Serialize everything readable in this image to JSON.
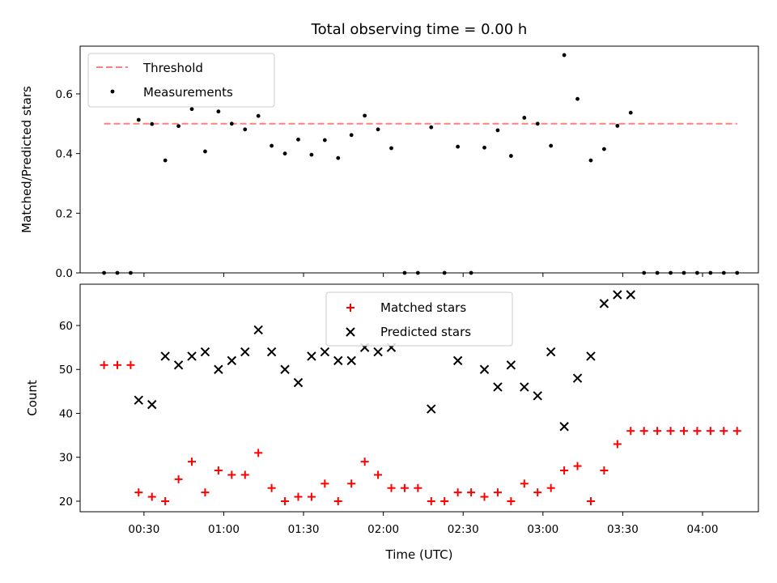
{
  "title": "Total observing time = 0.00 h",
  "colors": {
    "threshold": "#ff7f7f",
    "measurements": "#000000",
    "matched": "#ff0000",
    "predicted": "#000000"
  },
  "chart_data": [
    {
      "type": "scatter",
      "panel": "top",
      "ylabel": "Matched/Predicted stars",
      "xlabel": "",
      "ylim": [
        0.0,
        0.76
      ],
      "yticks": [
        0.0,
        0.2,
        0.4,
        0.6
      ],
      "ytick_labels": [
        "0.0",
        "0.2",
        "0.4",
        "0.6"
      ],
      "legend_position": "upper-left",
      "threshold": {
        "name": "Threshold",
        "value": 0.5,
        "x_start": "00:15",
        "x_end": "04:13"
      },
      "series": [
        {
          "name": "Measurements",
          "marker": "dot",
          "points": [
            [
              "00:15",
              0.0
            ],
            [
              "00:20",
              0.0
            ],
            [
              "00:25",
              0.0
            ],
            [
              "00:28",
              0.513
            ],
            [
              "00:33",
              0.499
            ],
            [
              "00:38",
              0.377
            ],
            [
              "00:43",
              0.492
            ],
            [
              "00:48",
              0.549
            ],
            [
              "00:53",
              0.407
            ],
            [
              "00:58",
              0.541
            ],
            [
              "01:03",
              0.5
            ],
            [
              "01:08",
              0.481
            ],
            [
              "01:13",
              0.526
            ],
            [
              "01:18",
              0.426
            ],
            [
              "01:23",
              0.4
            ],
            [
              "01:28",
              0.447
            ],
            [
              "01:33",
              0.396
            ],
            [
              "01:38",
              0.445
            ],
            [
              "01:43",
              0.385
            ],
            [
              "01:48",
              0.462
            ],
            [
              "01:53",
              0.527
            ],
            [
              "01:58",
              0.481
            ],
            [
              "02:03",
              0.418
            ],
            [
              "02:08",
              0.0
            ],
            [
              "02:13",
              0.0
            ],
            [
              "02:18",
              0.488
            ],
            [
              "02:23",
              0.0
            ],
            [
              "02:28",
              0.423
            ],
            [
              "02:33",
              0.0
            ],
            [
              "02:38",
              0.42
            ],
            [
              "02:43",
              0.478
            ],
            [
              "02:48",
              0.392
            ],
            [
              "02:53",
              0.52
            ],
            [
              "02:58",
              0.5
            ],
            [
              "03:03",
              0.426
            ],
            [
              "03:08",
              0.73
            ],
            [
              "03:13",
              0.583
            ],
            [
              "03:18",
              0.377
            ],
            [
              "03:23",
              0.415
            ],
            [
              "03:28",
              0.493
            ],
            [
              "03:33",
              0.537
            ],
            [
              "03:38",
              0.0
            ],
            [
              "03:43",
              0.0
            ],
            [
              "03:48",
              0.0
            ],
            [
              "03:53",
              0.0
            ],
            [
              "03:58",
              0.0
            ],
            [
              "04:03",
              0.0
            ],
            [
              "04:08",
              0.0
            ],
            [
              "04:13",
              0.0
            ]
          ]
        }
      ]
    },
    {
      "type": "scatter",
      "panel": "bottom",
      "ylabel": "Count",
      "xlabel": "Time (UTC)",
      "ylim": [
        17.6,
        69.4
      ],
      "yticks": [
        20,
        30,
        40,
        50,
        60
      ],
      "ytick_labels": [
        "20",
        "30",
        "40",
        "50",
        "60"
      ],
      "xlim": [
        "00:06",
        "04:21"
      ],
      "xticks": [
        "00:30",
        "01:00",
        "01:30",
        "02:00",
        "02:30",
        "03:00",
        "03:30",
        "04:00"
      ],
      "xtick_labels": [
        "00:30",
        "01:00",
        "01:30",
        "02:00",
        "02:30",
        "03:00",
        "03:30",
        "04:00"
      ],
      "legend_position": "upper-center",
      "series": [
        {
          "name": "Matched stars",
          "marker": "plus",
          "points": [
            [
              "00:15",
              51
            ],
            [
              "00:20",
              51
            ],
            [
              "00:25",
              51
            ],
            [
              "00:28",
              22
            ],
            [
              "00:33",
              21
            ],
            [
              "00:38",
              20
            ],
            [
              "00:43",
              25
            ],
            [
              "00:48",
              29
            ],
            [
              "00:53",
              22
            ],
            [
              "00:58",
              27
            ],
            [
              "01:03",
              26
            ],
            [
              "01:08",
              26
            ],
            [
              "01:13",
              31
            ],
            [
              "01:18",
              23
            ],
            [
              "01:23",
              20
            ],
            [
              "01:28",
              21
            ],
            [
              "01:33",
              21
            ],
            [
              "01:38",
              24
            ],
            [
              "01:43",
              20
            ],
            [
              "01:48",
              24
            ],
            [
              "01:53",
              29
            ],
            [
              "01:58",
              26
            ],
            [
              "02:03",
              23
            ],
            [
              "02:08",
              23
            ],
            [
              "02:13",
              23
            ],
            [
              "02:18",
              20
            ],
            [
              "02:23",
              20
            ],
            [
              "02:28",
              22
            ],
            [
              "02:33",
              22
            ],
            [
              "02:38",
              21
            ],
            [
              "02:43",
              22
            ],
            [
              "02:48",
              20
            ],
            [
              "02:53",
              24
            ],
            [
              "02:58",
              22
            ],
            [
              "03:03",
              23
            ],
            [
              "03:08",
              27
            ],
            [
              "03:13",
              28
            ],
            [
              "03:18",
              20
            ],
            [
              "03:23",
              27
            ],
            [
              "03:28",
              33
            ],
            [
              "03:33",
              36
            ],
            [
              "03:38",
              36
            ],
            [
              "03:43",
              36
            ],
            [
              "03:48",
              36
            ],
            [
              "03:53",
              36
            ],
            [
              "03:58",
              36
            ],
            [
              "04:03",
              36
            ],
            [
              "04:08",
              36
            ],
            [
              "04:13",
              36
            ]
          ]
        },
        {
          "name": "Predicted stars",
          "marker": "x",
          "points": [
            [
              "00:28",
              43
            ],
            [
              "00:33",
              42
            ],
            [
              "00:38",
              53
            ],
            [
              "00:43",
              51
            ],
            [
              "00:48",
              53
            ],
            [
              "00:53",
              54
            ],
            [
              "00:58",
              50
            ],
            [
              "01:03",
              52
            ],
            [
              "01:08",
              54
            ],
            [
              "01:13",
              59
            ],
            [
              "01:18",
              54
            ],
            [
              "01:23",
              50
            ],
            [
              "01:28",
              47
            ],
            [
              "01:33",
              53
            ],
            [
              "01:38",
              54
            ],
            [
              "01:43",
              52
            ],
            [
              "01:48",
              52
            ],
            [
              "01:53",
              55
            ],
            [
              "01:58",
              54
            ],
            [
              "02:03",
              55
            ],
            [
              "02:18",
              41
            ],
            [
              "02:28",
              52
            ],
            [
              "02:38",
              50
            ],
            [
              "02:43",
              46
            ],
            [
              "02:48",
              51
            ],
            [
              "02:53",
              46
            ],
            [
              "02:58",
              44
            ],
            [
              "03:03",
              54
            ],
            [
              "03:08",
              37
            ],
            [
              "03:13",
              48
            ],
            [
              "03:18",
              53
            ],
            [
              "03:23",
              65
            ],
            [
              "03:28",
              67
            ],
            [
              "03:33",
              67
            ]
          ]
        }
      ]
    }
  ]
}
